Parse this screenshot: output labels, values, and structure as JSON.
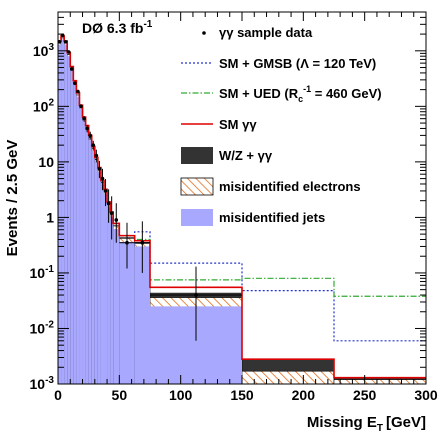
{
  "chart_data": {
    "type": "histogram",
    "header": "DØ 6.3 fb",
    "header_sup": "-1",
    "xlabel": "Missing E",
    "xlabel_sub": "T",
    "xlabel_unit": "[GeV]",
    "ylabel": "Events / 2.5 GeV",
    "x_range": [
      0,
      300
    ],
    "y_range": [
      0.001,
      5000
    ],
    "y_scale": "log",
    "x_ticks": [
      0,
      50,
      100,
      150,
      200,
      250,
      300
    ],
    "x_tick_labels": [
      "0",
      "50",
      "100",
      "150",
      "200",
      "250",
      "300"
    ],
    "y_ticks": [
      0.001,
      0.01,
      0.1,
      1,
      10,
      100,
      1000
    ],
    "y_tick_base": "10",
    "y_tick_exponents": [
      "-3",
      "-2",
      "-1",
      "",
      "",
      "2",
      "3"
    ],
    "y_tick_plain": [
      "",
      "",
      "",
      "1",
      "10",
      "",
      ""
    ],
    "bin_edges": [
      0,
      2.5,
      5,
      7.5,
      10,
      12.5,
      15,
      17.5,
      20,
      22.5,
      25,
      27.5,
      30,
      32.5,
      35,
      37.5,
      40,
      42.5,
      45,
      50,
      62.5,
      75,
      150,
      225,
      300
    ],
    "series": [
      {
        "name": "misidentified jets",
        "style": "fill",
        "color": "#a8a8ff",
        "values": [
          1300,
          1600,
          1300,
          800,
          450,
          250,
          150,
          90,
          55,
          38,
          25,
          16,
          10,
          6.5,
          3.8,
          2.6,
          1.5,
          1.0,
          0.62,
          0.36,
          0.3,
          0.025,
          0.001,
          0.001
        ]
      },
      {
        "name": "misidentified electrons",
        "style": "hatch",
        "color": "#e07020",
        "values": [
          1380,
          1700,
          1380,
          850,
          480,
          265,
          160,
          96,
          59,
          41,
          27,
          17.5,
          11,
          7.2,
          4.2,
          2.9,
          1.7,
          1.13,
          0.7,
          0.42,
          0.34,
          0.036,
          0.0017,
          0.0012
        ]
      },
      {
        "name": "W/Z + γγ",
        "style": "fill",
        "color": "#333333",
        "values": [
          1400,
          1730,
          1400,
          870,
          490,
          270,
          163,
          98,
          60,
          42,
          28,
          18,
          11.3,
          7.4,
          4.3,
          3.0,
          1.75,
          1.17,
          0.72,
          0.44,
          0.36,
          0.044,
          0.0028,
          0.0013
        ]
      },
      {
        "name": "SM γγ",
        "style": "line",
        "color": "#dd0000",
        "values": [
          1500,
          1850,
          1500,
          930,
          520,
          290,
          175,
          105,
          64,
          45,
          30,
          19,
          12,
          7.9,
          4.6,
          3.2,
          1.9,
          1.25,
          0.78,
          0.47,
          0.38,
          0.055,
          0.0028,
          0.0013
        ]
      },
      {
        "name": "SM + UED (R_c^-1 = 460 GeV)",
        "style": "dashdot",
        "color": "#33aa33",
        "values": [
          1500,
          1850,
          1500,
          930,
          520,
          290,
          175,
          105,
          64,
          45,
          30,
          19,
          12,
          7.9,
          4.6,
          3.2,
          1.9,
          1.25,
          0.78,
          0.47,
          0.4,
          0.075,
          0.08,
          0.038
        ]
      },
      {
        "name": "SM + GMSB (Λ = 120 TeV)",
        "style": "dotted",
        "color": "#2233cc",
        "values": [
          1500,
          1850,
          1500,
          930,
          520,
          290,
          175,
          105,
          64,
          45,
          30,
          19,
          12,
          7.9,
          4.6,
          3.2,
          1.9,
          1.25,
          0.78,
          0.47,
          0.55,
          0.15,
          0.048,
          0.006
        ]
      }
    ],
    "data_points": {
      "name": "γγ sample data",
      "x": [
        1.25,
        3.75,
        6.25,
        8.75,
        11.25,
        13.75,
        16.25,
        18.75,
        21.25,
        23.75,
        26.25,
        28.75,
        31.25,
        33.75,
        36.25,
        38.75,
        41.25,
        43.75,
        47.5,
        56.25,
        68.75,
        112.5
      ],
      "y": [
        1450,
        1900,
        1450,
        950,
        470,
        260,
        185,
        100,
        60,
        40,
        30,
        20,
        13,
        7.5,
        5,
        3,
        1.8,
        1.2,
        0.9,
        0.35,
        0.35,
        0.04
      ],
      "yerr_low": [
        40,
        45,
        40,
        30,
        22,
        16,
        13,
        9,
        7,
        6,
        5,
        4,
        3.2,
        2.4,
        1.9,
        1.4,
        1.0,
        0.8,
        0.55,
        0.23,
        0.25,
        0.034
      ],
      "yerr_high": [
        40,
        45,
        40,
        30,
        22,
        16,
        13,
        9,
        7,
        6,
        5,
        4,
        3.6,
        2.9,
        2.5,
        1.9,
        1.4,
        1.2,
        0.9,
        0.45,
        0.5,
        0.09
      ]
    },
    "legend": {
      "placement": "top-right",
      "entries": [
        "γγ sample data",
        "SM + GMSB (Λ = 120 TeV)",
        "SM + UED (R",
        "SM γγ",
        "W/Z + γγ",
        "misidentified electrons",
        "misidentified jets"
      ],
      "ued_parts": [
        "SM + UED (R",
        "c",
        "-1",
        " = 460 GeV)"
      ]
    }
  }
}
